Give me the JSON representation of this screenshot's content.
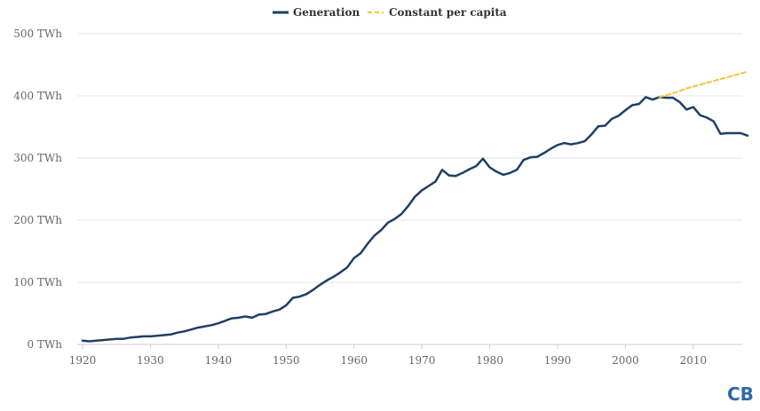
{
  "chart_data": {
    "type": "line",
    "title": "",
    "xlabel": "",
    "ylabel": "",
    "xlim": [
      1920,
      2018
    ],
    "ylim": [
      0,
      500
    ],
    "x_ticks": [
      1920,
      1930,
      1940,
      1950,
      1960,
      1970,
      1980,
      1990,
      2000,
      2010
    ],
    "y_ticks": [
      0,
      100,
      200,
      300,
      400,
      500
    ],
    "y_tick_labels": [
      "0 TWh",
      "100 TWh",
      "200 TWh",
      "300 TWh",
      "400 TWh",
      "500 TWh"
    ],
    "legend_position": "top-center",
    "series": [
      {
        "name": "Generation",
        "color": "#1f3f66",
        "style": "solid",
        "x": [
          1920,
          1921,
          1922,
          1923,
          1924,
          1925,
          1926,
          1927,
          1928,
          1929,
          1930,
          1931,
          1932,
          1933,
          1934,
          1935,
          1936,
          1937,
          1938,
          1939,
          1940,
          1941,
          1942,
          1943,
          1944,
          1945,
          1946,
          1947,
          1948,
          1949,
          1950,
          1951,
          1952,
          1953,
          1954,
          1955,
          1956,
          1957,
          1958,
          1959,
          1960,
          1961,
          1962,
          1963,
          1964,
          1965,
          1966,
          1967,
          1968,
          1969,
          1970,
          1971,
          1972,
          1973,
          1974,
          1975,
          1976,
          1977,
          1978,
          1979,
          1980,
          1981,
          1982,
          1983,
          1984,
          1985,
          1986,
          1987,
          1988,
          1989,
          1990,
          1991,
          1992,
          1993,
          1994,
          1995,
          1996,
          1997,
          1998,
          1999,
          2000,
          2001,
          2002,
          2003,
          2004,
          2005,
          2006,
          2007,
          2008,
          2009,
          2010,
          2011,
          2012,
          2013,
          2014,
          2015,
          2016,
          2017,
          2018
        ],
        "values": [
          6,
          5,
          6,
          7,
          8,
          9,
          9,
          11,
          12,
          13,
          13,
          14,
          15,
          16,
          19,
          21,
          24,
          27,
          29,
          31,
          34,
          38,
          42,
          43,
          45,
          43,
          48,
          49,
          53,
          56,
          63,
          75,
          77,
          81,
          88,
          96,
          103,
          109,
          116,
          124,
          139,
          147,
          162,
          175,
          184,
          196,
          202,
          210,
          223,
          238,
          248,
          255,
          262,
          281,
          272,
          271,
          276,
          282,
          287,
          299,
          285,
          278,
          273,
          276,
          281,
          297,
          301,
          302,
          308,
          315,
          321,
          324,
          322,
          324,
          327,
          338,
          351,
          352,
          363,
          368,
          377,
          385,
          387,
          398,
          394,
          398,
          397,
          397,
          390,
          378,
          382,
          369,
          365,
          359,
          339,
          340,
          340,
          340,
          336
        ]
      },
      {
        "name": "Constant per capita",
        "color": "#f2c43d",
        "style": "dashed",
        "x": [
          2005,
          2006,
          2007,
          2008,
          2009,
          2010,
          2011,
          2012,
          2013,
          2014,
          2015,
          2016,
          2017,
          2018
        ],
        "values": [
          398,
          401,
          404,
          408,
          412,
          415,
          418,
          421,
          424,
          427,
          430,
          433,
          436,
          439
        ]
      }
    ]
  },
  "branding": {
    "logo_text": "CB"
  }
}
